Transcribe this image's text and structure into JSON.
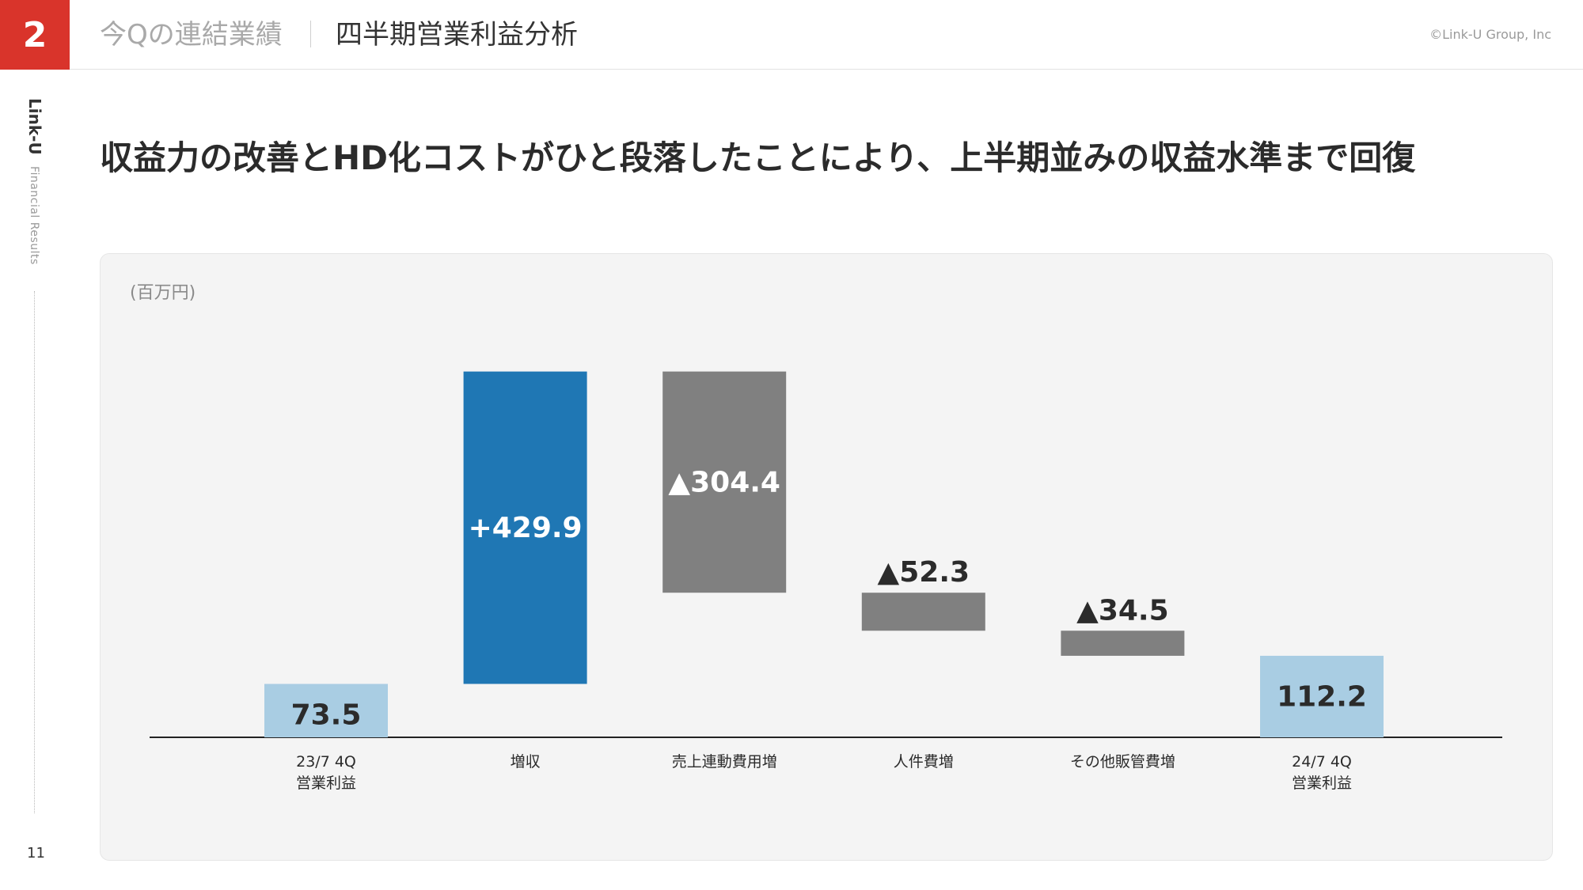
{
  "header": {
    "section_number": "2",
    "section_title": "今Qの連結業績",
    "page_title": "四半期営業利益分析",
    "copyright": "©Link-U Group, Inc"
  },
  "sidebar": {
    "brand": "Link-U",
    "subtitle": "Financial Results",
    "page_number": "11"
  },
  "headline": "収益力の改善とHD化コストがひと段落したことにより、上半期並みの収益水準まで回復",
  "colors": {
    "accent_red": "#d9342b",
    "total_bar": "#a9cde3",
    "increase_bar": "#1f77b4",
    "decrease_bar": "#808080",
    "panel_bg": "#f4f4f4"
  },
  "chart_data": {
    "type": "bar",
    "subtype": "waterfall",
    "unit": "(百万円)",
    "categories": [
      [
        "23/7 4Q",
        "営業利益"
      ],
      [
        "増収"
      ],
      [
        "売上連動費用増"
      ],
      [
        "人件費増"
      ],
      [
        "その他販管費増"
      ],
      [
        "24/7 4Q",
        "営業利益"
      ]
    ],
    "values": [
      73.5,
      429.9,
      -304.4,
      -52.3,
      -34.5,
      112.2
    ],
    "kinds": [
      "total",
      "increase",
      "decrease",
      "decrease",
      "decrease",
      "total"
    ],
    "data_labels": [
      "73.5",
      "+429.9",
      "▲304.4",
      "▲52.3",
      "▲34.5",
      "112.2"
    ],
    "ylim": [
      0,
      540
    ],
    "grid": false,
    "legend": "none"
  }
}
